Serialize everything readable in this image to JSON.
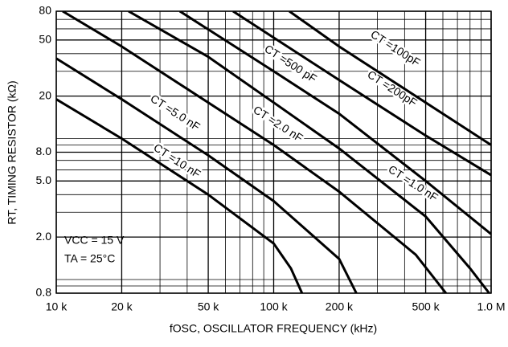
{
  "chart_data": {
    "type": "line",
    "x_label": "fOSC, OSCILLATOR FREQUENCY (kHz)",
    "y_label": "RT, TIMING RESISTOR (kΩ)",
    "annotations": [
      "VCC = 15 V",
      "TA = 25°C"
    ],
    "log_x": true,
    "log_y": true,
    "grid": true,
    "xlim": [
      10,
      1000
    ],
    "ylim": [
      0.8,
      80
    ],
    "xticks": [
      {
        "value": 10,
        "label": "10 k"
      },
      {
        "value": 20,
        "label": "20 k"
      },
      {
        "value": 50,
        "label": "50 k"
      },
      {
        "value": 100,
        "label": "100 k"
      },
      {
        "value": 200,
        "label": "200 k"
      },
      {
        "value": 500,
        "label": "500 k"
      },
      {
        "value": 1000,
        "label": "1.0 M"
      }
    ],
    "yticks": [
      0.8,
      {
        "value": 2,
        "label": "2.0"
      },
      {
        "value": 5,
        "label": "5.0"
      },
      {
        "value": 8,
        "label": "8.0"
      },
      20,
      50,
      80
    ],
    "xminor_ticks": [
      30,
      40,
      60,
      70,
      80,
      90,
      300,
      400,
      600,
      700,
      800,
      900
    ],
    "yminor_ticks": [
      0.9,
      1,
      3,
      4,
      6,
      7,
      9,
      10,
      30,
      40,
      60,
      70
    ],
    "series": [
      {
        "name": "CT =10 nF",
        "color": "#000000",
        "x": [
          10,
          20,
          50,
          100,
          120,
          135
        ],
        "values": [
          19,
          10,
          4,
          1.8,
          1.2,
          0.8
        ]
      },
      {
        "name": "CT =5.0 nF",
        "color": "#000000",
        "x": [
          10,
          20,
          50,
          100,
          200,
          240
        ],
        "values": [
          37,
          19,
          7.6,
          3.6,
          1.4,
          0.8
        ]
      },
      {
        "name": "CT =2.0 nF",
        "color": "#000000",
        "x": [
          10.7,
          20,
          50,
          100,
          200,
          450,
          620
        ],
        "values": [
          80,
          45,
          18,
          9,
          4.2,
          1.5,
          0.8
        ]
      },
      {
        "name": "CT =1.0 nF",
        "color": "#000000",
        "x": [
          21.5,
          50,
          100,
          200,
          500,
          800,
          980
        ],
        "values": [
          80,
          38,
          18,
          8.5,
          2.8,
          1.2,
          0.8
        ]
      },
      {
        "name": "CT =500 pF",
        "color": "#000000",
        "x": [
          37,
          100,
          200,
          500,
          1000
        ],
        "values": [
          80,
          30,
          15,
          5,
          2.1
        ]
      },
      {
        "name": "CT =200pF",
        "color": "#000000",
        "x": [
          65,
          100,
          200,
          500,
          1000
        ],
        "values": [
          80,
          52,
          26,
          10.5,
          5.5
        ]
      },
      {
        "name": "CT =100pF",
        "color": "#000000",
        "x": [
          118,
          200,
          500,
          1000
        ],
        "values": [
          80,
          45,
          18,
          9
        ]
      }
    ]
  }
}
